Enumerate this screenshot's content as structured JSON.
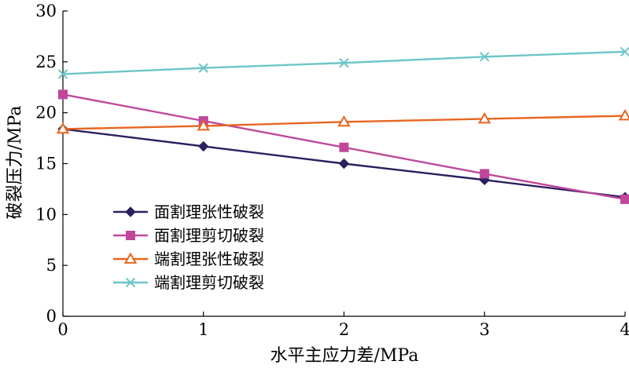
{
  "chart_data": {
    "type": "line",
    "title": "",
    "xlabel": "水平主应力差/MPa",
    "ylabel": "破裂压力/MPa",
    "x": [
      0,
      1,
      2,
      3,
      4
    ],
    "xlim": [
      0,
      4
    ],
    "ylim": [
      0,
      30
    ],
    "xticks": [
      "0",
      "1",
      "2",
      "3",
      "4"
    ],
    "yticks": [
      "0",
      "5",
      "10",
      "15",
      "20",
      "25",
      "30"
    ],
    "grid": false,
    "legend_position": "bottom-left",
    "series": [
      {
        "name": "面割理张性破裂",
        "values": [
          18.4,
          16.7,
          15.0,
          13.4,
          11.7
        ],
        "color": "#2b1f5e",
        "marker": "diamond"
      },
      {
        "name": "面割理剪切破裂",
        "values": [
          21.8,
          19.2,
          16.6,
          14.0,
          11.5
        ],
        "color": "#c0479a",
        "marker": "square"
      },
      {
        "name": "端割理张性破裂",
        "values": [
          18.4,
          18.7,
          19.1,
          19.4,
          19.7
        ],
        "color": "#e8641f",
        "marker": "triangle"
      },
      {
        "name": "端割理剪切破裂",
        "values": [
          23.8,
          24.4,
          24.9,
          25.5,
          26.0
        ],
        "color": "#6cc5c9",
        "marker": "x"
      }
    ]
  }
}
